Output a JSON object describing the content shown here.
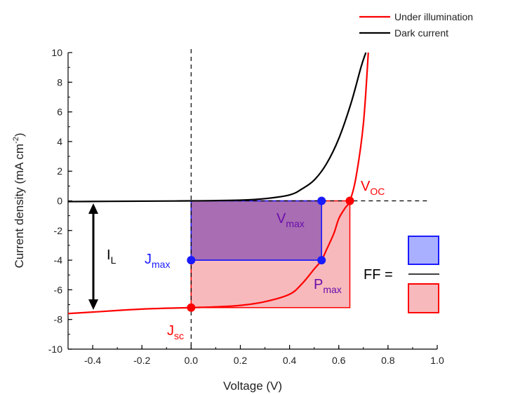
{
  "chart_data": {
    "type": "line",
    "title": "",
    "xlabel": "Voltage (V)",
    "ylabel": "Current density (mA cm",
    "ylabel_sup": "-2",
    "ylabel_end": ")",
    "xlim": [
      -0.5,
      1.0
    ],
    "ylim": [
      -10,
      10
    ],
    "xticks": [
      -0.4,
      -0.2,
      0.0,
      0.2,
      0.4,
      0.6,
      0.8,
      1.0
    ],
    "xtick_labels": [
      "-0.4",
      "-0.2",
      "0.0",
      "0.2",
      "0.4",
      "0.6",
      "0.8",
      "1.0"
    ],
    "yticks": [
      -10,
      -8,
      -6,
      -4,
      -2,
      0,
      2,
      4,
      6,
      8,
      10
    ],
    "ytick_labels": [
      "-10",
      "-8",
      "-6",
      "-4",
      "-2",
      "0",
      "2",
      "4",
      "6",
      "8",
      "10"
    ],
    "grid": false,
    "legend_position": "top-right",
    "series": [
      {
        "name": "Under illumination",
        "color": "#ff0000",
        "x": [
          -0.5,
          -0.4,
          -0.2,
          0.0,
          0.1,
          0.2,
          0.3,
          0.4,
          0.45,
          0.5,
          0.53,
          0.55,
          0.58,
          0.6,
          0.625,
          0.645,
          0.67,
          0.7,
          0.72
        ],
        "y": [
          -7.6,
          -7.5,
          -7.3,
          -7.2,
          -7.15,
          -7.05,
          -6.8,
          -6.3,
          -5.6,
          -4.6,
          -4.0,
          -3.3,
          -2.2,
          -1.2,
          -0.5,
          0.0,
          1.6,
          5.2,
          10
        ]
      },
      {
        "name": "Dark current",
        "color": "#000000",
        "x": [
          -0.5,
          -0.2,
          0.0,
          0.2,
          0.3,
          0.4,
          0.45,
          0.5,
          0.55,
          0.6,
          0.65,
          0.69,
          0.71
        ],
        "y": [
          -0.05,
          -0.02,
          0.0,
          0.05,
          0.15,
          0.4,
          0.8,
          1.4,
          2.5,
          4.2,
          6.6,
          9.0,
          10
        ]
      }
    ],
    "points": {
      "voc": {
        "x": 0.645,
        "y": 0
      },
      "jsc": {
        "x": 0.0,
        "y": -7.2
      },
      "pmax": {
        "x": 0.53,
        "y": -4.0
      },
      "vmax": {
        "x": 0.53,
        "y": 0
      },
      "jmax": {
        "x": 0.0,
        "y": -4.0
      }
    },
    "annotations": {
      "voc": {
        "main": "V",
        "sub": "OC"
      },
      "jsc": {
        "main": "J",
        "sub": "sc"
      },
      "vmax": {
        "main": "V",
        "sub": "max"
      },
      "jmax": {
        "main": "J",
        "sub": "max"
      },
      "pmax": {
        "main": "P",
        "sub": "max"
      },
      "il": {
        "main": "I",
        "sub": "L"
      },
      "ff": "FF ="
    },
    "colors": {
      "fill_max_rect": "#9a5fb0",
      "fill_ideal_rect": "#f7b9bc",
      "ff_blue_box": "#a9b0ff",
      "ff_pink_box": "#f7b9bc"
    }
  }
}
